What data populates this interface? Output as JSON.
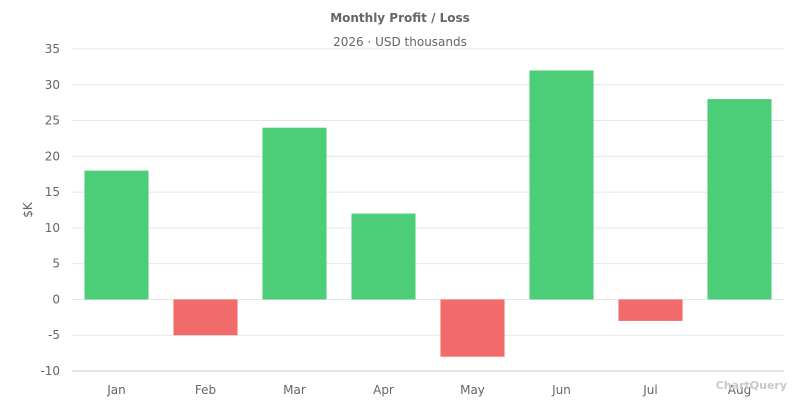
{
  "chart_data": {
    "type": "bar",
    "title": "Monthly Profit / Loss",
    "subtitle": "2026 · USD thousands",
    "xlabel": "",
    "ylabel": "$K",
    "categories": [
      "Jan",
      "Feb",
      "Mar",
      "Apr",
      "May",
      "Jun",
      "Jul",
      "Aug"
    ],
    "values": [
      18,
      -5,
      24,
      12,
      -8,
      32,
      -3,
      28
    ],
    "ylim": [
      -10,
      35
    ],
    "yticks": [
      35,
      30,
      25,
      20,
      15,
      10,
      5,
      0,
      -5,
      -10
    ],
    "grid": true,
    "legend": "none",
    "colors": {
      "positive": "#4ccd78",
      "negative": "#f26b6b",
      "grid": "#e6e6e6",
      "axis": "#cccccc"
    }
  },
  "watermark": "ChartQuery"
}
